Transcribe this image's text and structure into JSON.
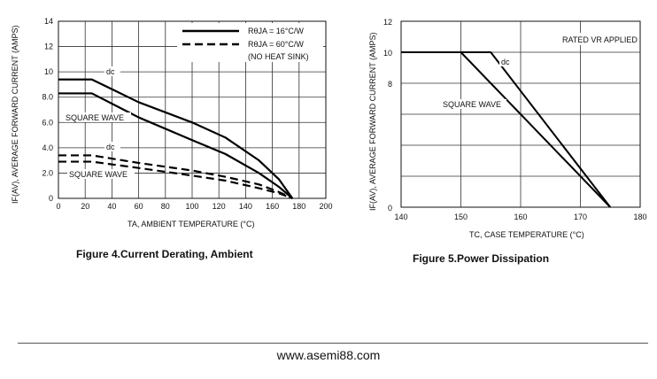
{
  "chart_data": [
    {
      "type": "line",
      "title": "",
      "caption": "Figure 4.Current  Derating, Ambient",
      "xlabel": "TA, AMBIENT TEMPERATURE (°C)",
      "ylabel": "IF(AV), AVERAGE FORWARD CURRENT (AMPS)",
      "xlim": [
        0,
        200
      ],
      "ylim": [
        0,
        14
      ],
      "x_ticks": [
        "0",
        "20",
        "40",
        "60",
        "80",
        "100",
        "120",
        "140",
        "160",
        "180",
        "200"
      ],
      "y_ticks": [
        "0",
        "2.0",
        "4.0",
        "6.0",
        "8.0",
        "10",
        "12",
        "14"
      ],
      "legend": {
        "placement": "top-right",
        "entries": [
          {
            "label": "RθJA = 16°C/W",
            "style": "solid"
          },
          {
            "label": "RθJA = 60°C/W",
            "style": "dashed"
          },
          {
            "label": "(NO HEAT SINK)",
            "style": "none"
          }
        ]
      },
      "annotations": [
        "dc",
        "SQUARE WAVE",
        "dc",
        "SQUARE WAVE"
      ],
      "series": [
        {
          "curve": "dc",
          "style": "solid",
          "x": [
            0,
            25,
            60,
            100,
            125,
            150,
            165,
            175
          ],
          "y": [
            9.4,
            9.4,
            7.6,
            6.0,
            4.8,
            3.0,
            1.5,
            0.0
          ]
        },
        {
          "curve": "square wave",
          "style": "solid",
          "x": [
            0,
            25,
            60,
            100,
            125,
            150,
            165,
            175
          ],
          "y": [
            8.3,
            8.3,
            6.4,
            4.6,
            3.5,
            2.0,
            0.9,
            0.0
          ]
        },
        {
          "curve": "dc",
          "style": "dashed",
          "x": [
            0,
            25,
            60,
            100,
            125,
            150,
            165,
            175
          ],
          "y": [
            3.4,
            3.4,
            2.8,
            2.2,
            1.7,
            1.1,
            0.5,
            0.0
          ]
        },
        {
          "curve": "square wave",
          "style": "dashed",
          "x": [
            0,
            25,
            60,
            100,
            125,
            150,
            165,
            175
          ],
          "y": [
            2.9,
            2.9,
            2.4,
            1.8,
            1.4,
            0.8,
            0.4,
            0.0
          ]
        }
      ]
    },
    {
      "type": "line",
      "title": "",
      "caption": "Figure 5.Power  Dissipation",
      "xlabel": "TC, CASE TEMPERATURE (°C)",
      "ylabel": "IF(AV), AVERAGE FORWARD CURRENT (AMPS)",
      "xlim": [
        140,
        180
      ],
      "ylim": [
        0,
        12
      ],
      "x_ticks": [
        "140",
        "150",
        "160",
        "170",
        "180"
      ],
      "y_ticks": [
        "0",
        "8",
        "10",
        "12"
      ],
      "annotation": "RATED VR APPLIED",
      "series_labels": [
        "dc",
        "SQUARE WAVE"
      ],
      "series": [
        {
          "curve": "dc",
          "x": [
            140,
            155,
            175
          ],
          "y": [
            10,
            10,
            0
          ]
        },
        {
          "curve": "square wave",
          "x": [
            140,
            150,
            175
          ],
          "y": [
            10,
            10,
            0
          ]
        }
      ]
    }
  ],
  "footer": {
    "url": "www.asemi88.com"
  }
}
